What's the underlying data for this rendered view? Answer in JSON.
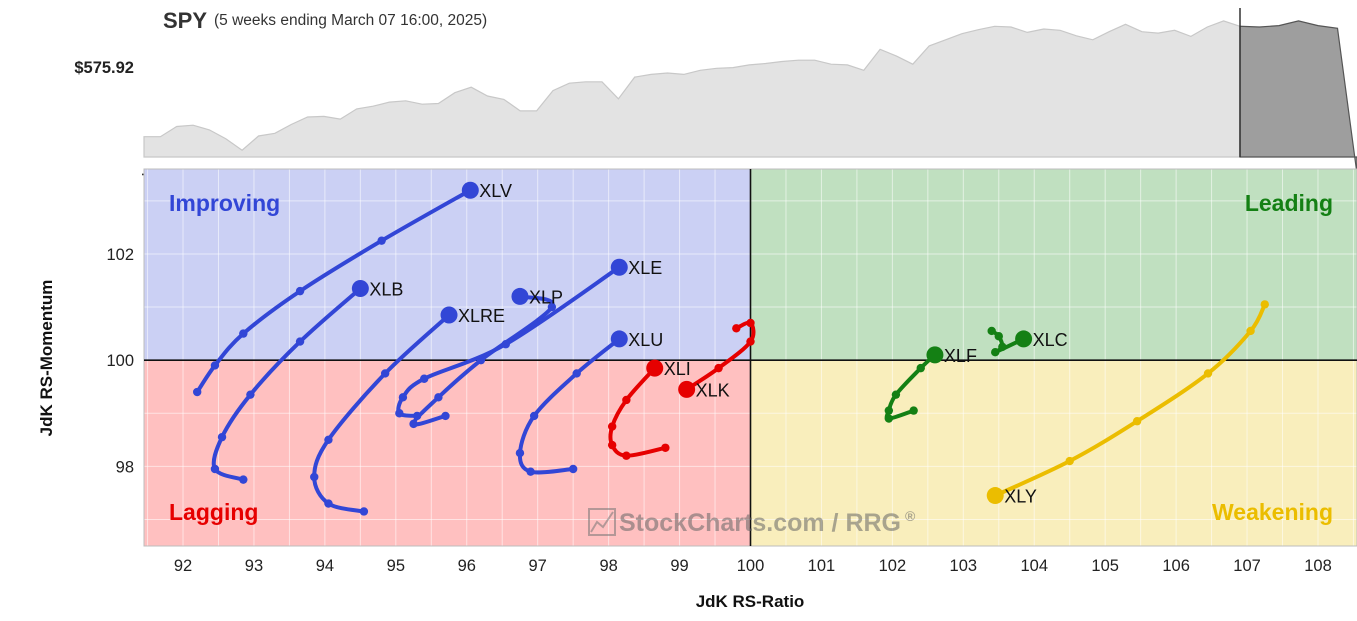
{
  "header": {
    "symbol": "SPY",
    "period": "(5 weeks ending March 07 16:00, 2025)",
    "price_label": "$575.92"
  },
  "colors": {
    "improving": "#3246d6",
    "leading": "#148014",
    "weakening": "#ebbd00",
    "lagging": "#e60000",
    "improving_bg": "#cbd0f4",
    "leading_bg": "#c0e0c0",
    "weakening_bg": "#f9eebc",
    "lagging_bg": "#ffc0c0"
  },
  "quadrant_labels": {
    "improving": "Improving",
    "leading": "Leading",
    "weakening": "Weakening",
    "lagging": "Lagging"
  },
  "watermark": "StockCharts.com / RRG",
  "watermark_mark": "®",
  "chart_data": [
    {
      "type": "area",
      "series": [
        {
          "name": "SPY",
          "values": [
            581.5,
            581.5,
            583,
            583.2,
            582.5,
            581.2,
            579.5,
            581.6,
            582,
            583.3,
            584.4,
            584.5,
            584.1,
            585.6,
            586,
            586.6,
            586.8,
            586.3,
            586.4,
            588,
            588.8,
            587.5,
            587,
            585.3,
            585.3,
            588.3,
            589.4,
            589.6,
            589.6,
            587.1,
            590.3,
            590.7,
            590.9,
            590.7,
            591.3,
            591.6,
            591.7,
            592.1,
            592.3,
            592.6,
            592.8,
            592.8,
            592.2,
            592.1,
            591.3,
            594.4,
            593.4,
            592.2,
            594.9,
            595.8,
            596.7,
            597.3,
            597.8,
            597.7,
            596.9,
            597.4,
            597.2,
            596.4,
            595.8,
            597,
            598.1,
            597,
            596.8,
            597.2,
            596.3,
            597.7,
            598.6,
            597.8
          ],
          "last_week_values": [
            597.8,
            597.7,
            597.9,
            598.6,
            597.9,
            597.5,
            576
          ]
        }
      ],
      "reference_value": 575.92,
      "ylim": [
        578.5,
        600.5
      ]
    },
    {
      "type": "scatter",
      "xlabel": "JdK RS-Ratio",
      "ylabel": "JdK RS-Momentum",
      "xlim": [
        91.45,
        108.55
      ],
      "ylim": [
        96.5,
        103.6
      ],
      "x_ticks": [
        92,
        93,
        94,
        95,
        96,
        97,
        98,
        99,
        100,
        101,
        102,
        103,
        104,
        105,
        106,
        107,
        108
      ],
      "y_ticks": [
        98,
        100,
        102
      ],
      "grid": true,
      "series": [
        {
          "name": "XLV",
          "color_key": "improving",
          "points": [
            [
              92.2,
              99.4
            ],
            [
              92.45,
              99.9
            ],
            [
              92.85,
              100.5
            ],
            [
              93.65,
              101.3
            ],
            [
              94.8,
              102.25
            ],
            [
              96.05,
              103.2
            ]
          ]
        },
        {
          "name": "XLB",
          "color_key": "improving",
          "points": [
            [
              92.85,
              97.75
            ],
            [
              92.45,
              97.95
            ],
            [
              92.55,
              98.55
            ],
            [
              92.95,
              99.35
            ],
            [
              93.65,
              100.35
            ],
            [
              94.5,
              101.35
            ]
          ]
        },
        {
          "name": "XLRE",
          "color_key": "improving",
          "points": [
            [
              94.55,
              97.15
            ],
            [
              94.05,
              97.3
            ],
            [
              93.85,
              97.8
            ],
            [
              94.05,
              98.5
            ],
            [
              94.85,
              99.75
            ],
            [
              95.75,
              100.85
            ]
          ]
        },
        {
          "name": "XLP",
          "color_key": "improving",
          "points": [
            [
              95.7,
              98.95
            ],
            [
              95.25,
              98.8
            ],
            [
              95.6,
              99.3
            ],
            [
              96.2,
              100.0
            ],
            [
              97.2,
              101.0
            ],
            [
              96.75,
              101.2
            ]
          ]
        },
        {
          "name": "XLE",
          "color_key": "improving",
          "points": [
            [
              95.3,
              98.95
            ],
            [
              95.05,
              99.0
            ],
            [
              95.1,
              99.3
            ],
            [
              95.4,
              99.65
            ],
            [
              96.55,
              100.3
            ],
            [
              98.15,
              101.75
            ]
          ]
        },
        {
          "name": "XLU",
          "color_key": "improving",
          "points": [
            [
              97.5,
              97.95
            ],
            [
              96.9,
              97.9
            ],
            [
              96.75,
              98.25
            ],
            [
              96.95,
              98.95
            ],
            [
              97.55,
              99.75
            ],
            [
              98.15,
              100.4
            ]
          ]
        },
        {
          "name": "XLI",
          "color_key": "lagging",
          "points": [
            [
              98.8,
              98.35
            ],
            [
              98.25,
              98.2
            ],
            [
              98.05,
              98.4
            ],
            [
              98.05,
              98.75
            ],
            [
              98.25,
              99.25
            ],
            [
              98.65,
              99.85
            ]
          ]
        },
        {
          "name": "XLK",
          "color_key": "lagging",
          "points": [
            [
              99.8,
              100.6
            ],
            [
              100.0,
              100.7
            ],
            [
              100.0,
              100.35
            ],
            [
              99.55,
              99.85
            ],
            [
              99.1,
              99.45
            ]
          ]
        },
        {
          "name": "XLF",
          "color_key": "leading",
          "points": [
            [
              102.3,
              99.05
            ],
            [
              101.95,
              98.9
            ],
            [
              101.95,
              99.05
            ],
            [
              102.05,
              99.35
            ],
            [
              102.4,
              99.85
            ],
            [
              102.6,
              100.1
            ]
          ]
        },
        {
          "name": "XLC",
          "color_key": "leading",
          "points": [
            [
              103.4,
              100.55
            ],
            [
              103.5,
              100.45
            ],
            [
              103.55,
              100.25
            ],
            [
              103.45,
              100.15
            ],
            [
              103.85,
              100.4
            ]
          ]
        },
        {
          "name": "XLY",
          "color_key": "weakening",
          "points": [
            [
              107.25,
              101.05
            ],
            [
              107.05,
              100.55
            ],
            [
              106.45,
              99.75
            ],
            [
              105.45,
              98.85
            ],
            [
              104.5,
              98.1
            ],
            [
              103.45,
              97.45
            ]
          ]
        }
      ]
    }
  ]
}
